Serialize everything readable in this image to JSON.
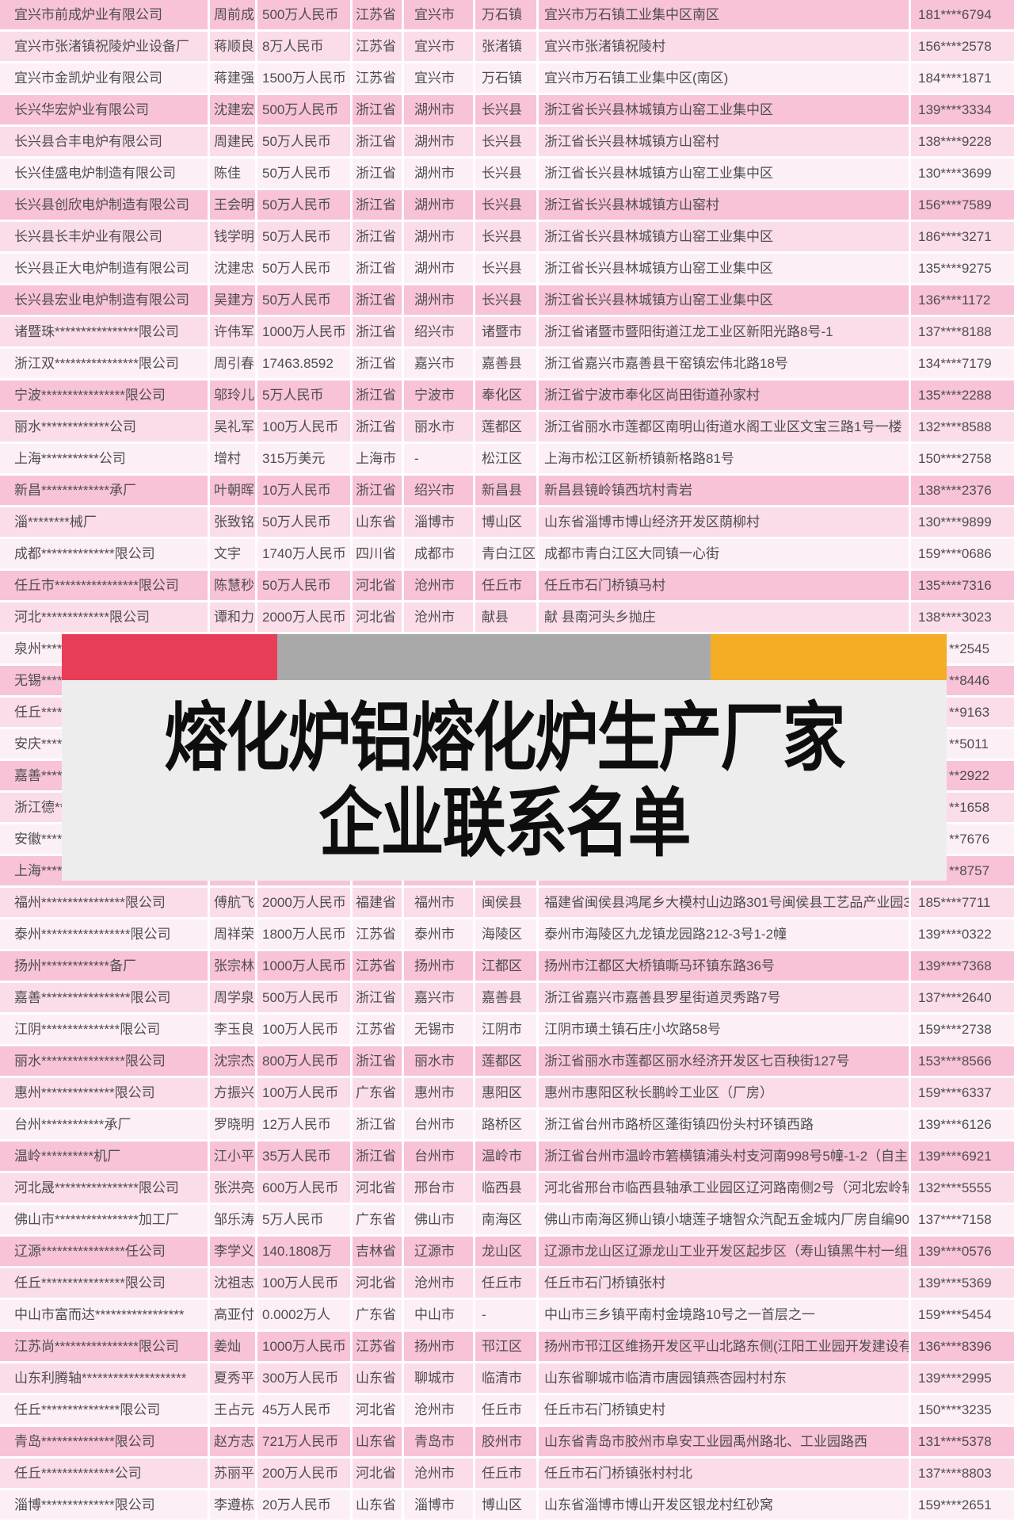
{
  "banner": {
    "title_line1": "熔化炉铝熔化炉生产厂家",
    "title_line2": "企业联系名单",
    "bar_red": "#e83d59",
    "bar_gray": "#a9a9a9",
    "bar_orange": "#f4ad25",
    "box_bg": "#ededed"
  },
  "table": {
    "row_shades": {
      "dark": "#f8c2d8",
      "medium": "#fbdce9",
      "light": "#fdeff6"
    },
    "columns": [
      "name",
      "contact",
      "capital",
      "province",
      "city",
      "district",
      "address",
      "phone"
    ],
    "rows": [
      {
        "name": "宜兴市前成炉业有限公司",
        "contact": "周前成",
        "capital": "500万人民币",
        "province": "江苏省",
        "city": "宜兴市",
        "district": "万石镇",
        "address": "宜兴市万石镇工业集中区南区",
        "phone": "181****6794",
        "covered": false
      },
      {
        "name": "宜兴市张渚镇祝陵炉业设备厂",
        "contact": "蒋顺良",
        "capital": "8万人民币",
        "province": "江苏省",
        "city": "宜兴市",
        "district": "张渚镇",
        "address": "宜兴市张渚镇祝陵村",
        "phone": "156****2578",
        "covered": false
      },
      {
        "name": "宜兴市金凯炉业有限公司",
        "contact": "蒋建强",
        "capital": "1500万人民币",
        "province": "江苏省",
        "city": "宜兴市",
        "district": "万石镇",
        "address": "宜兴市万石镇工业集中区(南区)",
        "phone": "184****1871",
        "covered": false
      },
      {
        "name": "长兴华宏炉业有限公司",
        "contact": "沈建宏",
        "capital": "500万人民币",
        "province": "浙江省",
        "city": "湖州市",
        "district": "长兴县",
        "address": "浙江省长兴县林城镇方山窑工业集中区",
        "phone": "139****3334",
        "covered": false
      },
      {
        "name": "长兴县合丰电炉有限公司",
        "contact": "周建民",
        "capital": "50万人民币",
        "province": "浙江省",
        "city": "湖州市",
        "district": "长兴县",
        "address": "浙江省长兴县林城镇方山窑村",
        "phone": "138****9228",
        "covered": false
      },
      {
        "name": "长兴佳盛电炉制造有限公司",
        "contact": "陈佳",
        "capital": "50万人民币",
        "province": "浙江省",
        "city": "湖州市",
        "district": "长兴县",
        "address": "浙江省长兴县林城镇方山窑工业集中区",
        "phone": "130****3699",
        "covered": false
      },
      {
        "name": "长兴县创欣电炉制造有限公司",
        "contact": "王会明",
        "capital": "50万人民币",
        "province": "浙江省",
        "city": "湖州市",
        "district": "长兴县",
        "address": "浙江省长兴县林城镇方山窑村",
        "phone": "156****7589",
        "covered": false
      },
      {
        "name": "长兴县长丰炉业有限公司",
        "contact": "钱学明",
        "capital": "50万人民币",
        "province": "浙江省",
        "city": "湖州市",
        "district": "长兴县",
        "address": "浙江省长兴县林城镇方山窑工业集中区",
        "phone": "186****3271",
        "covered": false
      },
      {
        "name": "长兴县正大电炉制造有限公司",
        "contact": "沈建忠",
        "capital": "50万人民币",
        "province": "浙江省",
        "city": "湖州市",
        "district": "长兴县",
        "address": "浙江省长兴县林城镇方山窑工业集中区",
        "phone": "135****9275",
        "covered": false
      },
      {
        "name": "长兴县宏业电炉制造有限公司",
        "contact": "吴建方",
        "capital": "50万人民币",
        "province": "浙江省",
        "city": "湖州市",
        "district": "长兴县",
        "address": "浙江省长兴县林城镇方山窑工业集中区",
        "phone": "136****1172",
        "covered": false
      },
      {
        "name": "诸暨珠****************限公司",
        "contact": "许伟军",
        "capital": "1000万人民币",
        "province": "浙江省",
        "city": "绍兴市",
        "district": "诸暨市",
        "address": "浙江省诸暨市暨阳街道江龙工业区新阳光路8号-1",
        "phone": "137****8188",
        "covered": false
      },
      {
        "name": "浙江双****************限公司",
        "contact": "周引春",
        "capital": "17463.8592",
        "province": "浙江省",
        "city": "嘉兴市",
        "district": "嘉善县",
        "address": "浙江省嘉兴市嘉善县干窑镇宏伟北路18号",
        "phone": "134****7179",
        "covered": false
      },
      {
        "name": "宁波****************限公司",
        "contact": "邬玲儿",
        "capital": "5万人民币",
        "province": "浙江省",
        "city": "宁波市",
        "district": "奉化区",
        "address": "浙江省宁波市奉化区尚田街道孙家村",
        "phone": "135****2288",
        "covered": false
      },
      {
        "name": "丽水*************公司",
        "contact": "吴礼军",
        "capital": "100万人民币",
        "province": "浙江省",
        "city": "丽水市",
        "district": "莲都区",
        "address": "浙江省丽水市莲都区南明山街道水阁工业区文宝三路1号一楼",
        "phone": "132****8588",
        "covered": false
      },
      {
        "name": "上海***********公司",
        "contact": "增村",
        "capital": "315万美元",
        "province": "上海市",
        "city": "-",
        "district": "松江区",
        "address": "上海市松江区新桥镇新格路81号",
        "phone": "150****2758",
        "covered": false
      },
      {
        "name": "新昌*************承厂",
        "contact": "叶朝晖",
        "capital": "10万人民币",
        "province": "浙江省",
        "city": "绍兴市",
        "district": "新昌县",
        "address": "新昌县镜岭镇西坑村青岩",
        "phone": "138****2376",
        "covered": false
      },
      {
        "name": "淄********械厂",
        "contact": "张致铭",
        "capital": "50万人民币",
        "province": "山东省",
        "city": "淄博市",
        "district": "博山区",
        "address": "山东省淄博市博山经济开发区荫柳村",
        "phone": "130****9899",
        "covered": false
      },
      {
        "name": "成都**************限公司",
        "contact": "文宇",
        "capital": "1740万人民币",
        "province": "四川省",
        "city": "成都市",
        "district": "青白江区",
        "address": "成都市青白江区大同镇一心街",
        "phone": "159****0686",
        "covered": false
      },
      {
        "name": "任丘市****************限公司",
        "contact": "陈慧秒",
        "capital": "50万人民币",
        "province": "河北省",
        "city": "沧州市",
        "district": "任丘市",
        "address": "任丘市石门桥镇马村",
        "phone": "135****7316",
        "covered": false
      },
      {
        "name": "河北*************限公司",
        "contact": "谭和力",
        "capital": "2000万人民币",
        "province": "河北省",
        "city": "沧州市",
        "district": "献县",
        "address": "献 县南河头乡抛庄",
        "phone": "138****3023",
        "covered": false
      },
      {
        "name": "泉州**************",
        "contact": "",
        "capital": "",
        "province": "",
        "city": "",
        "district": "",
        "address": "",
        "phone": "**2545",
        "covered": true
      },
      {
        "name": "无锡**************",
        "contact": "",
        "capital": "",
        "province": "",
        "city": "",
        "district": "",
        "address": "",
        "phone": "**8446",
        "covered": true
      },
      {
        "name": "任丘**************",
        "contact": "",
        "capital": "",
        "province": "",
        "city": "",
        "district": "",
        "address": "",
        "phone": "**9163",
        "covered": true
      },
      {
        "name": "安庆**************",
        "contact": "",
        "capital": "",
        "province": "",
        "city": "",
        "district": "",
        "address": "",
        "phone": "**5011",
        "covered": true
      },
      {
        "name": "嘉善**************",
        "contact": "",
        "capital": "",
        "province": "",
        "city": "",
        "district": "",
        "address": "",
        "phone": "**2922",
        "covered": true
      },
      {
        "name": "浙江德*************",
        "contact": "",
        "capital": "",
        "province": "",
        "city": "",
        "district": "",
        "address": "",
        "phone": "**1658",
        "covered": true
      },
      {
        "name": "安徽**************",
        "contact": "",
        "capital": "",
        "province": "",
        "city": "",
        "district": "",
        "address": "",
        "phone": "**7676",
        "covered": true
      },
      {
        "name": "上海**************",
        "contact": "",
        "capital": "",
        "province": "",
        "city": "",
        "district": "",
        "address": "",
        "phone": "**8757",
        "covered": true
      },
      {
        "name": "福州****************限公司",
        "contact": "傅航飞",
        "capital": "2000万人民币",
        "province": "福建省",
        "city": "福州市",
        "district": "闽侯县",
        "address": "福建省闽侯县鸿尾乡大模村山边路301号闽侯县工艺品产业园3",
        "phone": "185****7711",
        "covered": false
      },
      {
        "name": "泰州*****************限公司",
        "contact": "周祥荣",
        "capital": "1800万人民币",
        "province": "江苏省",
        "city": "泰州市",
        "district": "海陵区",
        "address": "泰州市海陵区九龙镇龙园路212-3号1-2幢",
        "phone": "139****0322",
        "covered": false
      },
      {
        "name": "扬州*************备厂",
        "contact": "张宗林",
        "capital": "1000万人民币",
        "province": "江苏省",
        "city": "扬州市",
        "district": "江都区",
        "address": "扬州市江都区大桥镇嘶马环镇东路36号",
        "phone": "139****7368",
        "covered": false
      },
      {
        "name": "嘉善*****************限公司",
        "contact": "周学泉",
        "capital": "500万人民币",
        "province": "浙江省",
        "city": "嘉兴市",
        "district": "嘉善县",
        "address": "浙江省嘉兴市嘉善县罗星街道灵秀路7号",
        "phone": "137****2640",
        "covered": false
      },
      {
        "name": "江阴***************限公司",
        "contact": "李玉良",
        "capital": "100万人民币",
        "province": "江苏省",
        "city": "无锡市",
        "district": "江阴市",
        "address": "江阴市璜土镇石庄小坎路58号",
        "phone": "159****2738",
        "covered": false
      },
      {
        "name": "丽水****************限公司",
        "contact": "沈宗杰",
        "capital": "800万人民币",
        "province": "浙江省",
        "city": "丽水市",
        "district": "莲都区",
        "address": "浙江省丽水市莲都区丽水经济开发区七百秧街127号",
        "phone": "153****8566",
        "covered": false
      },
      {
        "name": "惠州**************限公司",
        "contact": "方振兴",
        "capital": "100万人民币",
        "province": "广东省",
        "city": "惠州市",
        "district": "惠阳区",
        "address": "惠州市惠阳区秋长鹏岭工业区（厂房）",
        "phone": "159****6337",
        "covered": false
      },
      {
        "name": "台州************承厂",
        "contact": "罗晓明",
        "capital": "12万人民币",
        "province": "浙江省",
        "city": "台州市",
        "district": "路桥区",
        "address": "浙江省台州市路桥区蓬街镇四份头村环镇西路",
        "phone": "139****6126",
        "covered": false
      },
      {
        "name": "温岭**********机厂",
        "contact": "江小平",
        "capital": "35万人民币",
        "province": "浙江省",
        "city": "台州市",
        "district": "温岭市",
        "address": "浙江省台州市温岭市箬横镇浦头村支河南998号5幢-1-2（自主",
        "phone": "139****6921",
        "covered": false
      },
      {
        "name": "河北晟****************限公司",
        "contact": "张洪亮",
        "capital": "600万人民币",
        "province": "河北省",
        "city": "邢台市",
        "district": "临西县",
        "address": "河北省邢台市临西县轴承工业园区辽河路南侧2号（河北宏岭轴",
        "phone": "132****5555",
        "covered": false
      },
      {
        "name": "佛山市****************加工厂",
        "contact": "邹乐涛",
        "capital": "5万人民币",
        "province": "广东省",
        "city": "佛山市",
        "district": "南海区",
        "address": "佛山市南海区狮山镇小塘莲子塘智众汽配五金城内厂房自编903",
        "phone": "137****7158",
        "covered": false
      },
      {
        "name": "辽源****************任公司",
        "contact": "李学义",
        "capital": "140.1808万",
        "province": "吉林省",
        "city": "辽源市",
        "district": "龙山区",
        "address": "辽源市龙山区辽源龙山工业开发区起步区（寿山镇黑牛村一组）",
        "phone": "139****0576",
        "covered": false
      },
      {
        "name": "任丘****************限公司",
        "contact": "沈祖志",
        "capital": "100万人民币",
        "province": "河北省",
        "city": "沧州市",
        "district": "任丘市",
        "address": "任丘市石门桥镇张村",
        "phone": "139****5369",
        "covered": false
      },
      {
        "name": "中山市富而达*****************",
        "contact": "高亚付",
        "capital": "0.0002万人",
        "province": "广东省",
        "city": "中山市",
        "district": "-",
        "address": "中山市三乡镇平南村金境路10号之一首层之一",
        "phone": "159****5454",
        "covered": false
      },
      {
        "name": "江苏尚****************限公司",
        "contact": "姜灿",
        "capital": "1000万人民币",
        "province": "江苏省",
        "city": "扬州市",
        "district": "邗江区",
        "address": "扬州市邗江区维扬开发区平山北路东侧(江阳工业园开发建设有",
        "phone": "136****8396",
        "covered": false
      },
      {
        "name": "山东利腾轴********************",
        "contact": "夏秀平",
        "capital": "300万人民币",
        "province": "山东省",
        "city": "聊城市",
        "district": "临清市",
        "address": "山东省聊城市临清市唐园镇燕杏园村村东",
        "phone": "139****2995",
        "covered": false
      },
      {
        "name": "任丘***************限公司",
        "contact": "王占元",
        "capital": "45万人民币",
        "province": "河北省",
        "city": "沧州市",
        "district": "任丘市",
        "address": "任丘市石门桥镇史村",
        "phone": "150****3235",
        "covered": false
      },
      {
        "name": "青岛**************限公司",
        "contact": "赵方志",
        "capital": "721万人民币",
        "province": "山东省",
        "city": "青岛市",
        "district": "胶州市",
        "address": "山东省青岛市胶州市阜安工业园禹州路北、工业园路西",
        "phone": "131****5378",
        "covered": false
      },
      {
        "name": "任丘**************公司",
        "contact": "苏丽平",
        "capital": "200万人民币",
        "province": "河北省",
        "city": "沧州市",
        "district": "任丘市",
        "address": "任丘市石门桥镇张村村北",
        "phone": "137****8803",
        "covered": false
      },
      {
        "name": "淄博**************限公司",
        "contact": "李遵栋",
        "capital": "20万人民币",
        "province": "山东省",
        "city": "淄博市",
        "district": "博山区",
        "address": "山东省淄博市博山开发区银龙村红砂窝",
        "phone": "159****2651",
        "covered": false
      }
    ]
  }
}
